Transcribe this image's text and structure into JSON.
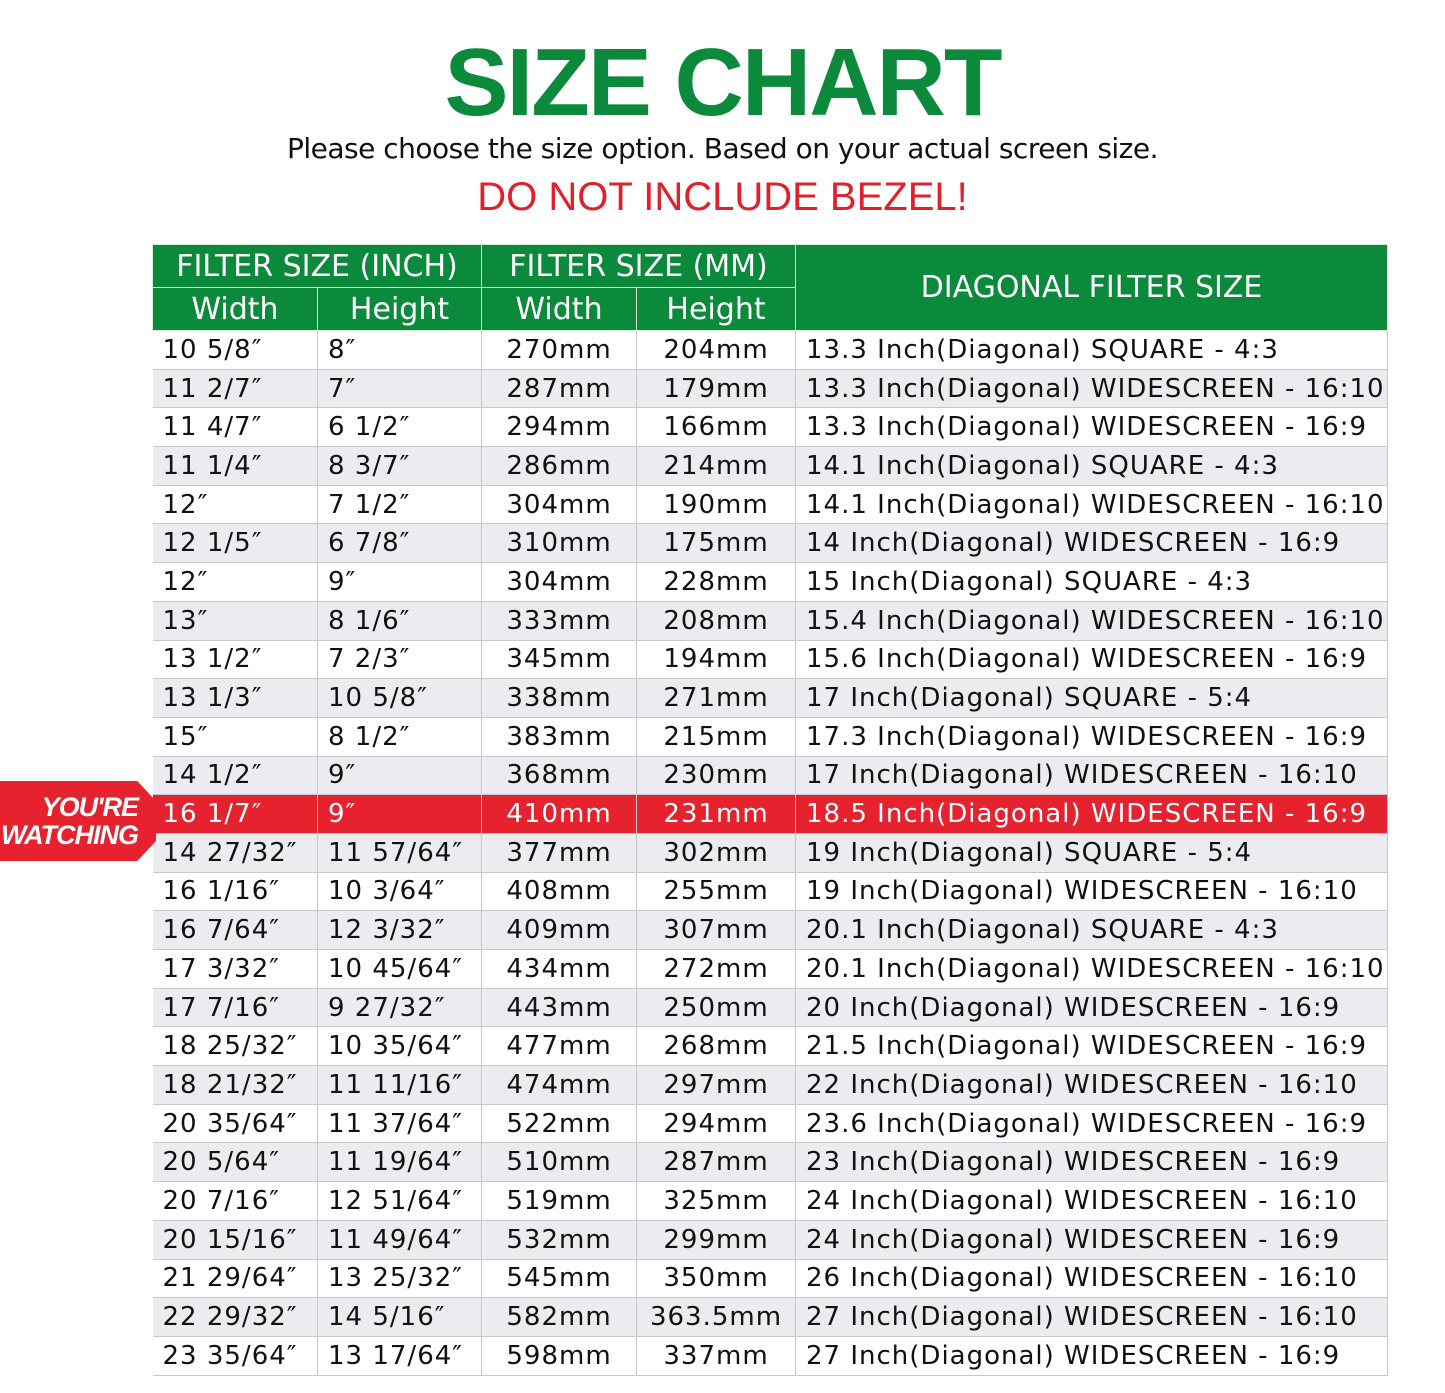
{
  "title": "SIZE CHART",
  "subtitle": "Please choose the size option. Based on your actual screen size.",
  "warning": "DO NOT INCLUDE BEZEL!",
  "badge": {
    "line1": "YOU'RE",
    "line2": "WATCHING"
  },
  "colors": {
    "brand_green": "#0a8a3a",
    "highlight_red": "#e5222e"
  },
  "header": {
    "inch_group": "FILTER SIZE (INCH)",
    "mm_group": "FILTER SIZE (MM)",
    "diagonal": "DIAGONAL FILTER SIZE",
    "width": "Width",
    "height": "Height"
  },
  "highlighted_row": 12,
  "rows": [
    [
      "10 5/8″",
      "8″",
      "270mm",
      "204mm",
      "13.3 Inch(Diagonal) SQUARE - 4:3"
    ],
    [
      "11 2/7″",
      "7″",
      "287mm",
      "179mm",
      "13.3 Inch(Diagonal) WIDESCREEN - 16:10"
    ],
    [
      "11 4/7″",
      "6 1/2″",
      "294mm",
      "166mm",
      "13.3 Inch(Diagonal) WIDESCREEN - 16:9"
    ],
    [
      "11 1/4″",
      "8 3/7″",
      "286mm",
      "214mm",
      "14.1 Inch(Diagonal) SQUARE - 4:3"
    ],
    [
      "12″",
      "7 1/2″",
      "304mm",
      "190mm",
      "14.1 Inch(Diagonal) WIDESCREEN - 16:10"
    ],
    [
      "12 1/5″",
      "6 7/8″",
      "310mm",
      "175mm",
      "14 Inch(Diagonal) WIDESCREEN - 16:9"
    ],
    [
      "12″",
      "9″",
      "304mm",
      "228mm",
      "15 Inch(Diagonal) SQUARE - 4:3"
    ],
    [
      "13″",
      "8 1/6″",
      "333mm",
      "208mm",
      "15.4 Inch(Diagonal) WIDESCREEN - 16:10"
    ],
    [
      "13 1/2″",
      "7 2/3″",
      "345mm",
      "194mm",
      "15.6 Inch(Diagonal) WIDESCREEN - 16:9"
    ],
    [
      "13 1/3″",
      "10 5/8″",
      "338mm",
      "271mm",
      "17 Inch(Diagonal) SQUARE - 5:4"
    ],
    [
      "15″",
      "8 1/2″",
      "383mm",
      "215mm",
      "17.3 Inch(Diagonal) WIDESCREEN - 16:9"
    ],
    [
      "14 1/2″",
      "9″",
      "368mm",
      "230mm",
      "17 Inch(Diagonal) WIDESCREEN - 16:10"
    ],
    [
      "16 1/7″",
      "9″",
      "410mm",
      "231mm",
      "18.5 Inch(Diagonal) WIDESCREEN - 16:9"
    ],
    [
      "14 27/32″",
      "11 57/64″",
      "377mm",
      "302mm",
      "19 Inch(Diagonal) SQUARE - 5:4"
    ],
    [
      "16 1/16″",
      "10 3/64″",
      "408mm",
      "255mm",
      "19 Inch(Diagonal) WIDESCREEN - 16:10"
    ],
    [
      "16 7/64″",
      "12 3/32″",
      "409mm",
      "307mm",
      "20.1 Inch(Diagonal) SQUARE - 4:3"
    ],
    [
      "17 3/32″",
      "10 45/64″",
      "434mm",
      "272mm",
      "20.1 Inch(Diagonal) WIDESCREEN - 16:10"
    ],
    [
      "17 7/16″",
      "9 27/32″",
      "443mm",
      "250mm",
      "20 Inch(Diagonal) WIDESCREEN - 16:9"
    ],
    [
      "18 25/32″",
      "10 35/64″",
      "477mm",
      "268mm",
      "21.5 Inch(Diagonal) WIDESCREEN - 16:9"
    ],
    [
      "18 21/32″",
      "11 11/16″",
      "474mm",
      "297mm",
      "22 Inch(Diagonal) WIDESCREEN - 16:10"
    ],
    [
      "20 35/64″",
      "11 37/64″",
      "522mm",
      "294mm",
      "23.6 Inch(Diagonal) WIDESCREEN - 16:9"
    ],
    [
      "20 5/64″",
      "11 19/64″",
      "510mm",
      "287mm",
      "23 Inch(Diagonal) WIDESCREEN - 16:9"
    ],
    [
      "20 7/16″",
      "12 51/64″",
      "519mm",
      "325mm",
      "24 Inch(Diagonal) WIDESCREEN - 16:10"
    ],
    [
      "20 15/16″",
      "11 49/64″",
      "532mm",
      "299mm",
      "24 Inch(Diagonal) WIDESCREEN - 16:9"
    ],
    [
      "21 29/64″",
      "13 25/32″",
      "545mm",
      "350mm",
      "26 Inch(Diagonal) WIDESCREEN - 16:10"
    ],
    [
      "22 29/32″",
      "14 5/16″",
      "582mm",
      "363.5mm",
      "27 Inch(Diagonal) WIDESCREEN - 16:10"
    ],
    [
      "23 35/64″",
      "13 17/64″",
      "598mm",
      "337mm",
      "27 Inch(Diagonal) WIDESCREEN - 16:9"
    ]
  ]
}
